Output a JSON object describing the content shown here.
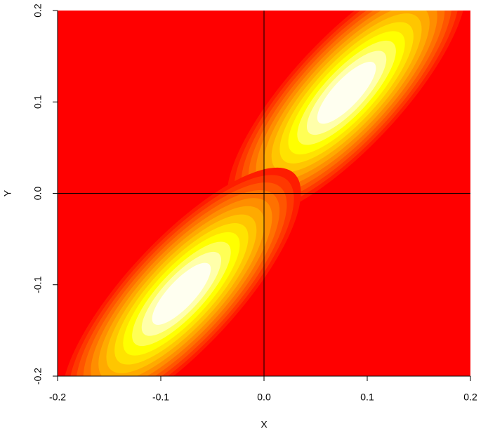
{
  "chart_data": {
    "type": "contour",
    "xlabel": "X",
    "ylabel": "Y",
    "xlim": [
      -0.2,
      0.2
    ],
    "ylim": [
      -0.2,
      0.2
    ],
    "xticks": [
      -0.2,
      -0.1,
      {
        "value": 0,
        "label": "0.0"
      },
      0.1,
      0.2
    ],
    "yticks": [
      -0.2,
      -0.1,
      {
        "value": 0,
        "label": "0.0"
      },
      0.1,
      0.2
    ],
    "peaks": [
      {
        "x": 0.08,
        "y": 0.11
      },
      {
        "x": -0.08,
        "y": -0.11
      }
    ],
    "colors": [
      "#FF0000",
      "#FF1C00",
      "#FF3800",
      "#FF5500",
      "#FF7100",
      "#FF8E00",
      "#FFAA00",
      "#FFC600",
      "#FFE300",
      "#FFFF00",
      "#FFFF55",
      "#FFFFAA",
      "#FFFFF0"
    ],
    "hlines": [
      0
    ],
    "vlines": [
      0
    ]
  }
}
